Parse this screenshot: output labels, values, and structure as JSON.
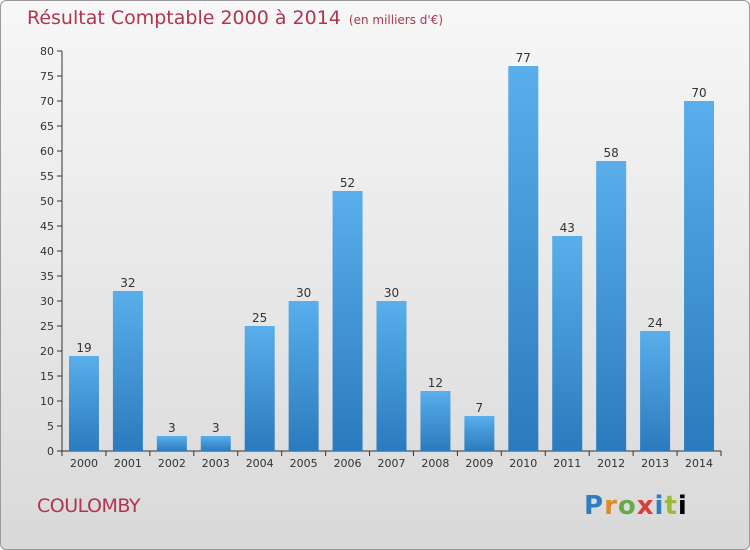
{
  "header": {
    "title": "Résultat Comptable 2000 à 2014",
    "subtitle": "(en milliers d'€)"
  },
  "footer": {
    "town": "COULOMBY",
    "logo": "Proxiti"
  },
  "colors": {
    "title": "#b0354f",
    "bar_light": "#5aaeeb",
    "bar_dark": "#2a7bbd",
    "axis": "#333333"
  },
  "chart_data": {
    "type": "bar",
    "title": "Résultat Comptable 2000 à 2014",
    "subtitle": "(en milliers d'€)",
    "xlabel": "",
    "ylabel": "",
    "categories": [
      "2000",
      "2001",
      "2002",
      "2003",
      "2004",
      "2005",
      "2006",
      "2007",
      "2008",
      "2009",
      "2010",
      "2011",
      "2012",
      "2013",
      "2014"
    ],
    "values": [
      19,
      32,
      3,
      3,
      25,
      30,
      52,
      30,
      12,
      7,
      77,
      43,
      58,
      24,
      70
    ],
    "ylim": [
      0,
      80
    ],
    "yticks": [
      0,
      5,
      10,
      15,
      20,
      25,
      30,
      35,
      40,
      45,
      50,
      55,
      60,
      65,
      70,
      75,
      80
    ],
    "grid": false,
    "data_labels": true
  }
}
